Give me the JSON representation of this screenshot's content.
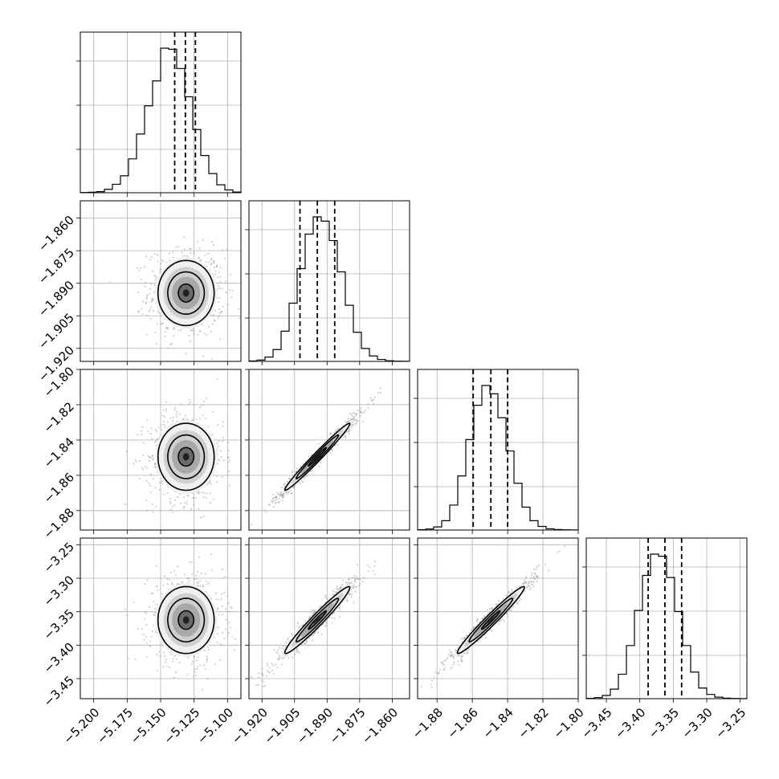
{
  "chart_data": {
    "type": "corner",
    "parameters": [
      {
        "range": [
          -5.21,
          -5.09
        ],
        "ticks": [
          -5.2,
          -5.175,
          -5.15,
          -5.125,
          -5.1
        ],
        "tick_labels": [
          "−5.200",
          "−5.175",
          "−5.150",
          "−5.125",
          "−5.100"
        ],
        "quantiles": [
          -5.1395,
          -5.1315,
          -5.124
        ],
        "center": -5.131,
        "sigma": 0.0105
      },
      {
        "range": [
          -1.926,
          -1.852
        ],
        "ticks": [
          -1.92,
          -1.905,
          -1.89,
          -1.875,
          -1.86
        ],
        "tick_labels": [
          "−1.920",
          "−1.905",
          "−1.890",
          "−1.875",
          "−1.860"
        ],
        "quantiles": [
          -1.9025,
          -1.8945,
          -1.8865
        ],
        "center": -1.8945,
        "sigma": 0.0075
      },
      {
        "range": [
          -1.891,
          -1.8
        ],
        "ticks": [
          -1.88,
          -1.86,
          -1.84,
          -1.82,
          -1.8
        ],
        "tick_labels": [
          "−1.88",
          "−1.86",
          "−1.84",
          "−1.82",
          "−1.80"
        ],
        "quantiles": [
          -1.8595,
          -1.8495,
          -1.84
        ],
        "center": -1.8495,
        "sigma": 0.0095
      },
      {
        "range": [
          -3.48,
          -3.24
        ],
        "ticks": [
          -3.45,
          -3.4,
          -3.35,
          -3.3,
          -3.25
        ],
        "tick_labels": [
          "−3.45",
          "−3.40",
          "−3.35",
          "−3.30",
          "−3.25"
        ],
        "quantiles": [
          -3.3875,
          -3.3625,
          -3.3375
        ],
        "center": -3.3625,
        "sigma": 0.025
      }
    ],
    "diagonal_histograms": [
      {
        "bins": 20,
        "counts": [
          2,
          5,
          10,
          30,
          75,
          150,
          300,
          520,
          770,
          990,
          1280,
          1270,
          1100,
          850,
          560,
          330,
          170,
          70,
          25,
          6
        ]
      },
      {
        "bins": 20,
        "counts": [
          4,
          12,
          40,
          110,
          280,
          540,
          860,
          1180,
          1340,
          1300,
          1120,
          830,
          520,
          270,
          120,
          50,
          18,
          6,
          2,
          1
        ]
      },
      {
        "bins": 20,
        "counts": [
          3,
          10,
          30,
          90,
          240,
          520,
          870,
          1200,
          1390,
          1310,
          1080,
          760,
          450,
          220,
          90,
          35,
          12,
          5,
          2,
          1
        ]
      },
      {
        "bins": 20,
        "counts": [
          3,
          10,
          30,
          90,
          230,
          500,
          830,
          1160,
          1360,
          1340,
          1140,
          820,
          500,
          250,
          100,
          40,
          14,
          5,
          2,
          1
        ]
      }
    ],
    "correlations": {
      "1-0": 0.0,
      "2-0": 0.0,
      "3-0": 0.0,
      "2-1": 0.985,
      "3-1": 0.97,
      "3-2": 0.975
    },
    "quantile_line_style": "dashed",
    "grid": true
  }
}
